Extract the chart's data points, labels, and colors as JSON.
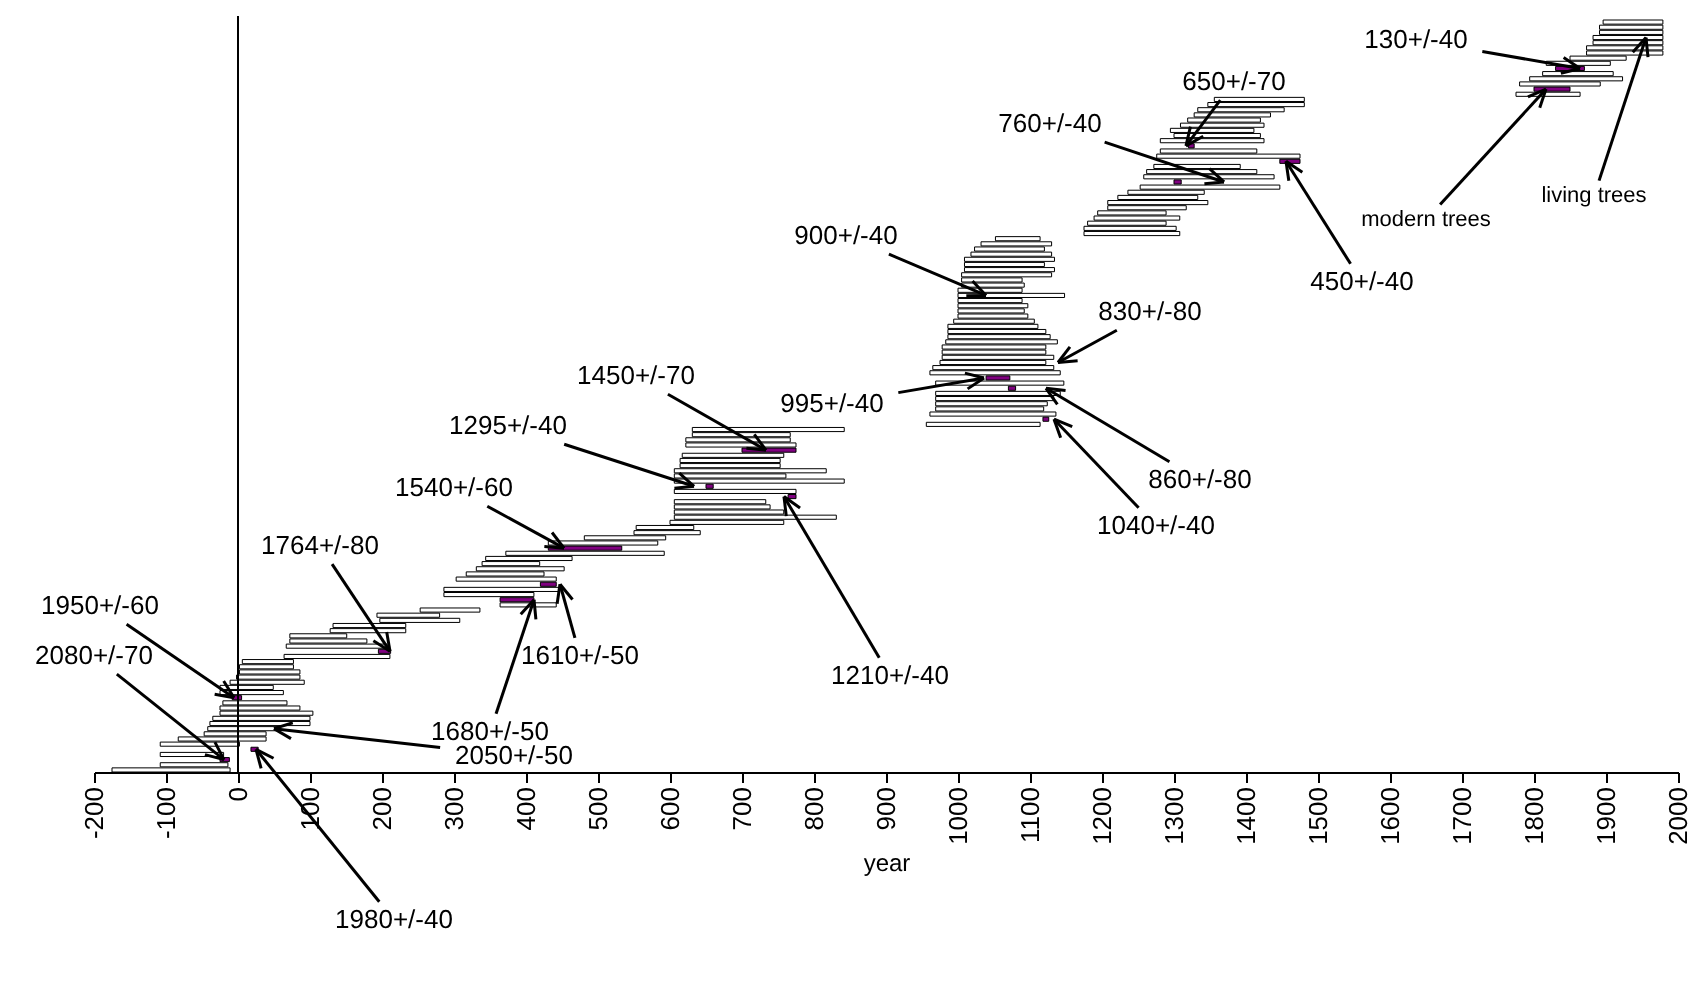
{
  "chart_data": {
    "type": "bar",
    "orientation": "horizontal",
    "xlabel": "year",
    "xlim": [
      -200,
      2000
    ],
    "xticks": [
      -200,
      -100,
      0,
      100,
      200,
      300,
      400,
      500,
      600,
      700,
      800,
      900,
      1000,
      1100,
      1200,
      1300,
      1400,
      1500,
      1600,
      1700,
      1800,
      1900,
      2000
    ],
    "grid": false,
    "ref_lines": [
      {
        "axis": "x",
        "value": 0
      }
    ],
    "categories": [
      null,
      null,
      null,
      null,
      null,
      null,
      null,
      null,
      null,
      null,
      null,
      null,
      null,
      null,
      null,
      null,
      null,
      null,
      null,
      null,
      null,
      null,
      null,
      null,
      null,
      null,
      null,
      null,
      null,
      null,
      null,
      null,
      null,
      null,
      null,
      null,
      null,
      null,
      null,
      null,
      null,
      null,
      null,
      null,
      null,
      null,
      null,
      null,
      null,
      null,
      null,
      null,
      null,
      null,
      null,
      null,
      null,
      null,
      null,
      null,
      null,
      null,
      null,
      null,
      null,
      null,
      null,
      null,
      null,
      null,
      null,
      null,
      null,
      null,
      null,
      null,
      null,
      null,
      null,
      null,
      null,
      null,
      null,
      null,
      null,
      null,
      null,
      null,
      null,
      null,
      null,
      null,
      null,
      null,
      null,
      null,
      null,
      null,
      null,
      null,
      null,
      null,
      null,
      null,
      null,
      null,
      null,
      null,
      null,
      null,
      null,
      null,
      null,
      null,
      null,
      null,
      null,
      null,
      null,
      null,
      null,
      null,
      null,
      null,
      null,
      null,
      null,
      null,
      null,
      null,
      null,
      null,
      null,
      null,
      null,
      null,
      null,
      null,
      null,
      null,
      null,
      null,
      null,
      null,
      null,
      null
    ],
    "base": [
      1896,
      1891,
      1891,
      1882,
      1882,
      1873,
      1873,
      1850,
      1817,
      1830,
      1812,
      1794,
      1780,
      1800,
      1775,
      1356,
      1347,
      1333,
      1328,
      1319,
      1309,
      1295,
      1300,
      1281,
      1320,
      1281,
      1276,
      1447,
      1272,
      1262,
      1258,
      1300,
      1253,
      1236,
      1222,
      1208,
      1208,
      1194,
      1189,
      1180,
      1175,
      1175,
      1052,
      1032,
      1023,
      1018,
      1009,
      1009,
      1009,
      1005,
      1005,
      1005,
      1000,
      1000,
      1000,
      1000,
      1000,
      1000,
      994,
      986,
      986,
      986,
      983,
      978,
      978,
      978,
      975,
      965,
      961,
      1039,
      969,
      1070,
      969,
      969,
      969,
      969,
      961,
      1118,
      956,
      631,
      631,
      622,
      622,
      700,
      617,
      614,
      614,
      606,
      606,
      606,
      650,
      606,
      764,
      606,
      606,
      606,
      606,
      600,
      553,
      550,
      481,
      431,
      431,
      372,
      344,
      339,
      331,
      317,
      303,
      420,
      286,
      286,
      364,
      364,
      253,
      193,
      197,
      132,
      128,
      72,
      72,
      67,
      195,
      64,
      6,
      2,
      2,
      -2,
      -11,
      -25,
      -25,
      -8,
      -21,
      -25,
      -25,
      -35,
      -39,
      -42,
      -47,
      -83,
      -108,
      18,
      -108,
      -25,
      -108,
      -175
    ],
    "values": [
      83,
      88,
      88,
      97,
      97,
      106,
      106,
      78,
      89,
      40,
      98,
      129,
      112,
      50,
      89,
      125,
      134,
      120,
      106,
      101,
      116,
      116,
      120,
      144,
      8,
      134,
      199,
      28,
      120,
      153,
      181,
      10,
      194,
      106,
      111,
      139,
      109,
      95,
      119,
      109,
      128,
      133,
      62,
      98,
      97,
      112,
      125,
      111,
      125,
      125,
      84,
      87,
      89,
      148,
      89,
      97,
      92,
      97,
      112,
      125,
      136,
      142,
      155,
      144,
      144,
      155,
      147,
      168,
      181,
      33,
      178,
      10,
      173,
      164,
      155,
      150,
      175,
      8,
      158,
      211,
      136,
      145,
      153,
      75,
      141,
      139,
      139,
      211,
      155,
      236,
      10,
      169,
      11,
      127,
      133,
      152,
      225,
      158,
      80,
      92,
      113,
      152,
      102,
      220,
      120,
      80,
      122,
      108,
      139,
      22,
      161,
      125,
      47,
      78,
      83,
      87,
      111,
      101,
      105,
      79,
      107,
      140,
      17,
      147,
      71,
      75,
      84,
      88,
      103,
      74,
      88,
      13,
      89,
      111,
      129,
      135,
      139,
      100,
      86,
      122,
      110,
      10,
      88,
      13,
      94,
      164
    ],
    "colors": [
      "#ffffff",
      "#ffffff",
      "#ffffff",
      "#ffffff",
      "#ffffff",
      "#ffffff",
      "#ffffff",
      "#ffffff",
      "#ffffff",
      "#800080",
      "#ffffff",
      "#ffffff",
      "#ffffff",
      "#800080",
      "#ffffff",
      "#ffffff",
      "#ffffff",
      "#ffffff",
      "#ffffff",
      "#ffffff",
      "#ffffff",
      "#ffffff",
      "#ffffff",
      "#ffffff",
      "#800080",
      "#ffffff",
      "#ffffff",
      "#800080",
      "#ffffff",
      "#ffffff",
      "#ffffff",
      "#800080",
      "#ffffff",
      "#ffffff",
      "#ffffff",
      "#ffffff",
      "#ffffff",
      "#ffffff",
      "#ffffff",
      "#ffffff",
      "#ffffff",
      "#ffffff",
      "#ffffff",
      "#ffffff",
      "#ffffff",
      "#ffffff",
      "#ffffff",
      "#ffffff",
      "#ffffff",
      "#ffffff",
      "#ffffff",
      "#ffffff",
      "#ffffff",
      "#ffffff",
      "#ffffff",
      "#ffffff",
      "#ffffff",
      "#ffffff",
      "#ffffff",
      "#ffffff",
      "#ffffff",
      "#ffffff",
      "#ffffff",
      "#ffffff",
      "#ffffff",
      "#ffffff",
      "#ffffff",
      "#ffffff",
      "#ffffff",
      "#800080",
      "#ffffff",
      "#800080",
      "#ffffff",
      "#ffffff",
      "#ffffff",
      "#ffffff",
      "#ffffff",
      "#800080",
      "#ffffff",
      "#ffffff",
      "#ffffff",
      "#ffffff",
      "#ffffff",
      "#800080",
      "#ffffff",
      "#ffffff",
      "#ffffff",
      "#ffffff",
      "#ffffff",
      "#ffffff",
      "#800080",
      "#ffffff",
      "#800080",
      "#ffffff",
      "#ffffff",
      "#ffffff",
      "#ffffff",
      "#ffffff",
      "#ffffff",
      "#ffffff",
      "#ffffff",
      "#ffffff",
      "#800080",
      "#ffffff",
      "#ffffff",
      "#ffffff",
      "#ffffff",
      "#ffffff",
      "#ffffff",
      "#800080",
      "#ffffff",
      "#ffffff",
      "#800080",
      "#ffffff",
      "#ffffff",
      "#ffffff",
      "#ffffff",
      "#ffffff",
      "#ffffff",
      "#ffffff",
      "#ffffff",
      "#ffffff",
      "#800080",
      "#ffffff",
      "#ffffff",
      "#ffffff",
      "#ffffff",
      "#ffffff",
      "#ffffff",
      "#ffffff",
      "#ffffff",
      "#800080",
      "#ffffff",
      "#ffffff",
      "#ffffff",
      "#ffffff",
      "#ffffff",
      "#ffffff",
      "#ffffff",
      "#ffffff",
      "#ffffff",
      "#800080",
      "#ffffff",
      "#800080",
      "#ffffff",
      "#ffffff"
    ],
    "annotations": [
      "2080+/-70",
      "1950+/-60",
      "1980+/-40",
      "2050+/-50",
      "1764+/-80",
      "1680+/-50",
      "1610+/-50",
      "1540+/-60",
      "1295+/-40",
      "1450+/-70",
      "1210+/-40",
      "995+/-40",
      "900+/-40",
      "830+/-80",
      "860+/-80",
      "1040+/-40",
      "760+/-40",
      "650+/-70",
      "450+/-40",
      "130+/-40",
      "modern trees",
      "living trees"
    ]
  }
}
